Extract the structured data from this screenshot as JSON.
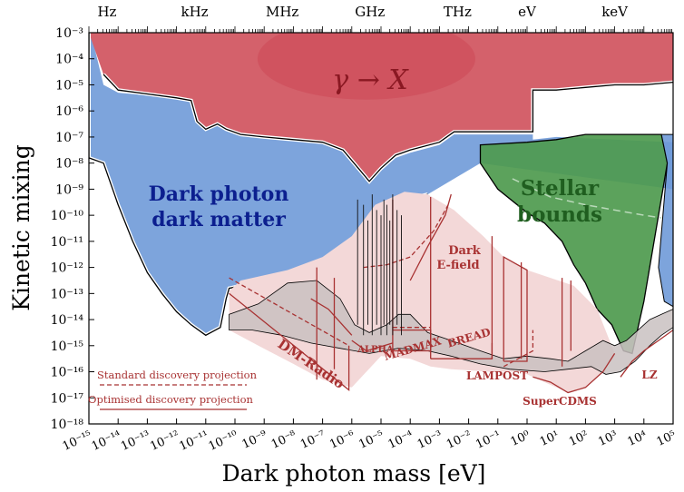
{
  "chart_data": {
    "type": "area",
    "xlabel": "Dark photon mass [eV]",
    "ylabel": "Kinetic mixing",
    "x_scale": "log",
    "y_scale": "log",
    "xlim": [
      1e-15,
      100000.0
    ],
    "ylim": [
      1e-18,
      0.001
    ],
    "x_ticks": [
      "10⁻¹⁵",
      "10⁻¹⁴",
      "10⁻¹³",
      "10⁻¹²",
      "10⁻¹¹",
      "10⁻¹⁰",
      "10⁻⁹",
      "10⁻⁸",
      "10⁻⁷",
      "10⁻⁶",
      "10⁻⁵",
      "10⁻⁴",
      "10⁻³",
      "10⁻²",
      "10⁻¹",
      "10⁰",
      "10¹",
      "10²",
      "10³",
      "10⁴",
      "10⁵"
    ],
    "y_ticks": [
      "10⁻³",
      "10⁻⁴",
      "10⁻⁵",
      "10⁻⁶",
      "10⁻⁷",
      "10⁻⁸",
      "10⁻⁹",
      "10⁻¹⁰",
      "10⁻¹¹",
      "10⁻¹²",
      "10⁻¹³",
      "10⁻¹⁴",
      "10⁻¹⁵",
      "10⁻¹⁶",
      "10⁻¹⁷",
      "10⁻¹⁸"
    ],
    "top_axis": [
      {
        "label": "Hz",
        "x": -14.38
      },
      {
        "label": "kHz",
        "x": -11.38
      },
      {
        "label": "MHz",
        "x": -8.38
      },
      {
        "label": "GHz",
        "x": -5.38
      },
      {
        "label": "THz",
        "x": -2.38
      },
      {
        "label": "eV",
        "x": 0
      },
      {
        "label": "keV",
        "x": 3
      }
    ],
    "regions": [
      {
        "name": "Dark photon dark matter",
        "color": "#6f9ad8",
        "boundary": [
          [
            -15,
            -3
          ],
          [
            -14.8,
            -3.6
          ],
          [
            -14.5,
            -5
          ],
          [
            -14,
            -5.3
          ],
          [
            -13,
            -5.4
          ],
          [
            -12,
            -5.5
          ],
          [
            -11.5,
            -5.6
          ],
          [
            -11.3,
            -6.4
          ],
          [
            -11,
            -6.7
          ],
          [
            -10.6,
            -6.5
          ],
          [
            -10.3,
            -6.7
          ],
          [
            -9.8,
            -6.9
          ],
          [
            -9,
            -7.0
          ],
          [
            -8,
            -7.1
          ],
          [
            -7,
            -7.2
          ],
          [
            -6.3,
            -7.5
          ],
          [
            -5.7,
            -8.3
          ],
          [
            -5.4,
            -8.7
          ],
          [
            -5,
            -8.3
          ],
          [
            -4.5,
            -7.8
          ],
          [
            -4,
            -7.6
          ],
          [
            -3,
            -7.3
          ],
          [
            -2.5,
            -6.9
          ],
          [
            -1,
            -6.9
          ],
          [
            0.2,
            -6.9
          ],
          [
            0.2,
            -7.1
          ],
          [
            1,
            -7.0
          ],
          [
            5,
            -7.2
          ],
          [
            5,
            -18
          ],
          [
            -15,
            -18
          ]
        ]
      },
      {
        "name": "Stellar bounds",
        "color": "#4e9a4e",
        "boundary": [
          [
            -1.6,
            -7.3
          ],
          [
            0,
            -7.2
          ],
          [
            1,
            -7.1
          ],
          [
            2,
            -6.9
          ],
          [
            3,
            -6.9
          ],
          [
            4,
            -6.9
          ],
          [
            4.6,
            -6.9
          ],
          [
            4.8,
            -8.0
          ],
          [
            4.5,
            -10
          ],
          [
            4.0,
            -13.3
          ],
          [
            3.6,
            -15.3
          ],
          [
            3.3,
            -15.2
          ],
          [
            2.9,
            -14.2
          ],
          [
            2.4,
            -13.6
          ],
          [
            2.0,
            -12.6
          ],
          [
            1.6,
            -11.9
          ],
          [
            1.2,
            -11.0
          ],
          [
            0.6,
            -10.3
          ],
          [
            0,
            -9.9
          ],
          [
            -1.0,
            -9.0
          ],
          [
            -1.6,
            -8.0
          ]
        ]
      },
      {
        "name": "γ → X",
        "color": "#d0545e",
        "boundary": [
          [
            -15,
            -3
          ],
          [
            -14.5,
            -4.6
          ],
          [
            -14,
            -5.2
          ],
          [
            -13,
            -5.35
          ],
          [
            -12,
            -5.5
          ],
          [
            -11.5,
            -5.6
          ],
          [
            -11.3,
            -6.4
          ],
          [
            -11,
            -6.7
          ],
          [
            -10.6,
            -6.5
          ],
          [
            -10.3,
            -6.7
          ],
          [
            -9.8,
            -6.9
          ],
          [
            -9,
            -7.0
          ],
          [
            -8,
            -7.1
          ],
          [
            -7,
            -7.2
          ],
          [
            -6.3,
            -7.5
          ],
          [
            -5.7,
            -8.3
          ],
          [
            -5.4,
            -8.7
          ],
          [
            -5,
            -8.2
          ],
          [
            -4.5,
            -7.7
          ],
          [
            -4,
            -7.5
          ],
          [
            -3,
            -7.2
          ],
          [
            -2.5,
            -6.8
          ],
          [
            -1,
            -6.8
          ],
          [
            0.2,
            -6.8
          ],
          [
            0.2,
            -5.2
          ],
          [
            1,
            -5.2
          ],
          [
            2,
            -5.1
          ],
          [
            3,
            -5.0
          ],
          [
            4,
            -5.0
          ],
          [
            5,
            -4.9
          ],
          [
            5,
            -3
          ]
        ]
      }
    ],
    "experiments": [
      {
        "name": "DM-Radio",
        "style": "projection"
      },
      {
        "name": "ALPHA",
        "style": "projection"
      },
      {
        "name": "MADMAX",
        "style": "projection"
      },
      {
        "name": "BREAD",
        "style": "projection"
      },
      {
        "name": "Dark E-field",
        "style": "projection"
      },
      {
        "name": "LAMPOST",
        "style": "projection"
      },
      {
        "name": "SuperCDMS",
        "style": "projection"
      },
      {
        "name": "LZ",
        "style": "projection"
      }
    ],
    "region_labels": {
      "dpdm_line1": "Dark photon",
      "dpdm_line2": "dark matter",
      "stellar_line1": "Stellar",
      "stellar_line2": "bounds",
      "gamma": "γ → X",
      "dark_efield_line1": "Dark",
      "dark_efield_line2": "E-field",
      "dm_radio": "DM-Radio",
      "alpha": "ALPHA",
      "madmax": "MADMAX",
      "bread": "BREAD",
      "lampost": "LAMPOST",
      "supercdms": "SuperCDMS",
      "lz": "LZ"
    },
    "legend": {
      "placement": "bottom-left",
      "entries": [
        {
          "label": "Standard discovery projection",
          "style": "dashed"
        },
        {
          "label": "Optimised discovery projection",
          "style": "solid"
        }
      ]
    },
    "colors": {
      "dpdm": "#6f9ad8",
      "stellar": "#4e9a4e",
      "gamma": "#d0545e",
      "projection": "#a83232",
      "projection_fill": "#f3d8d8"
    }
  }
}
